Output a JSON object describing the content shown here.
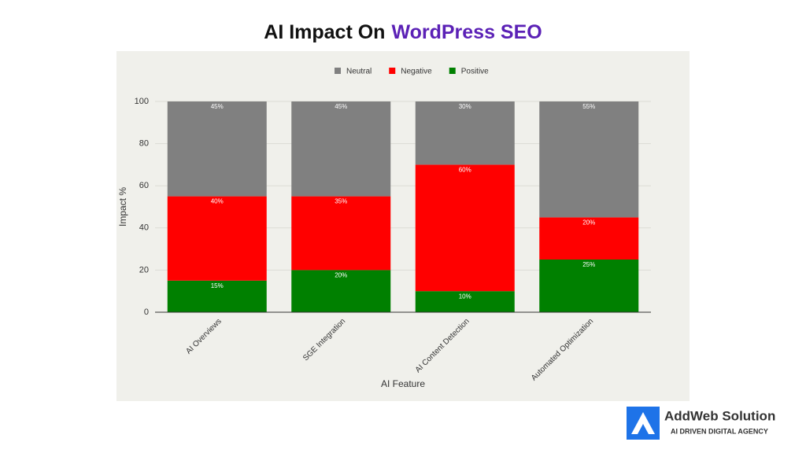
{
  "chart_data": {
    "type": "stacked-bar",
    "title": [
      "AI Impact On",
      "WordPress SEO"
    ],
    "x_label": "AI Feature",
    "y_label": "Impact %",
    "categories": [
      "AI Overviews",
      "SGE Integration",
      "AI Content Detection",
      "Automated Optimization"
    ],
    "series": [
      {
        "name": "Neutral",
        "color": "#808080",
        "values": [
          45,
          45,
          30,
          55
        ],
        "value_labels": [
          "45%",
          "45%",
          "30%",
          "55%"
        ]
      },
      {
        "name": "Negative",
        "color": "#ff0000",
        "values": [
          40,
          35,
          60,
          20
        ],
        "value_labels": [
          "40%",
          "35%",
          "60%",
          "20%"
        ]
      },
      {
        "name": "Positive",
        "color": "#008000",
        "values": [
          15,
          20,
          10,
          25
        ],
        "value_labels": [
          "15%",
          "20%",
          "10%",
          "25%"
        ]
      }
    ],
    "ylim": [
      0,
      100
    ],
    "yticks": [
      0,
      20,
      40,
      60,
      80,
      100
    ],
    "grid": true,
    "legend": "top"
  },
  "brand": {
    "name": "AddWeb Solution",
    "tagline": "AI DRIVEN DIGITAL AGENCY"
  }
}
